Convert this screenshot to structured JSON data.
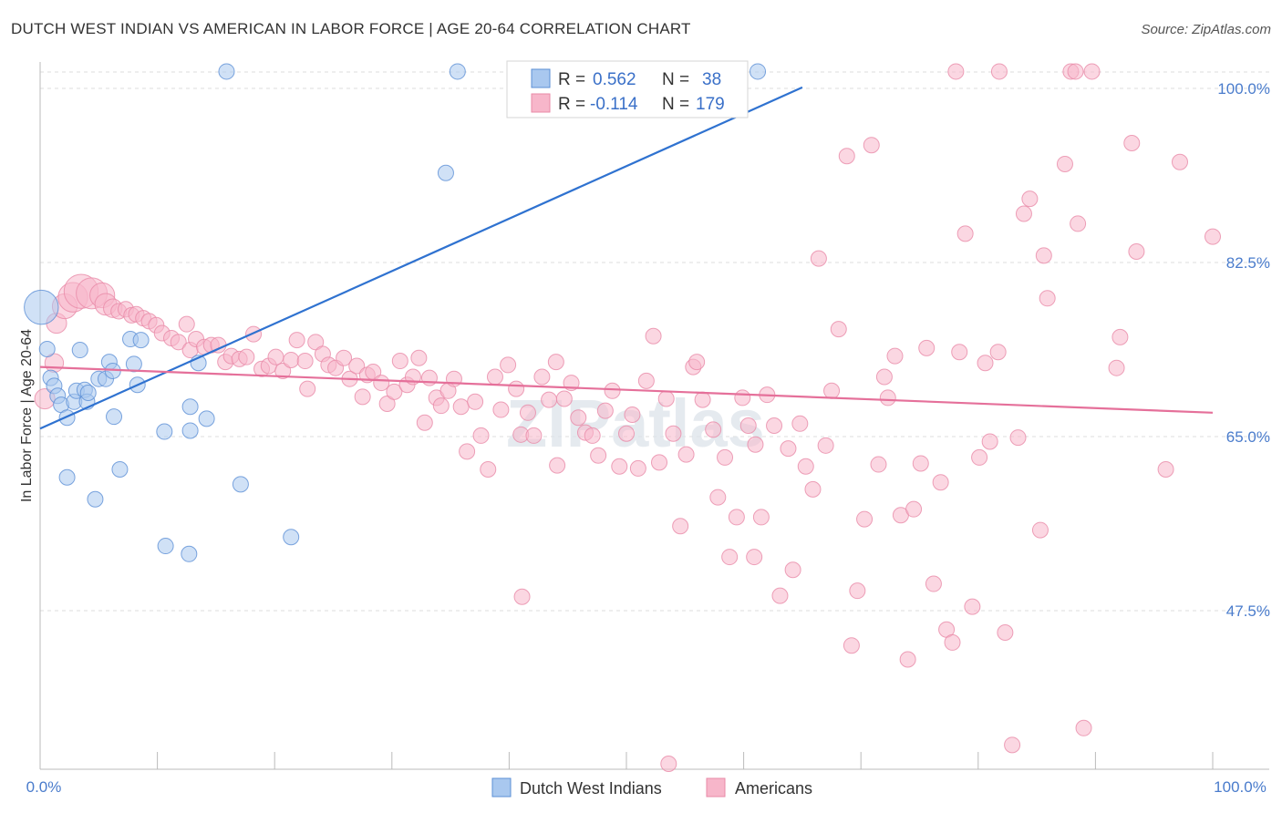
{
  "title": "DUTCH WEST INDIAN VS AMERICAN IN LABOR FORCE | AGE 20-64 CORRELATION CHART",
  "source": "Source: ZipAtlas.com",
  "watermark": "ZIPatlas",
  "chart_data": {
    "type": "scatter",
    "title": "DUTCH WEST INDIAN VS AMERICAN IN LABOR FORCE | AGE 20-64 CORRELATION CHART",
    "xlabel": "",
    "ylabel": "In Labor Force | Age 20-64",
    "xlim": [
      0,
      100
    ],
    "ylim": [
      32,
      102
    ],
    "x_tick_labels": [
      "0.0%",
      "100.0%"
    ],
    "y_ticks": [
      47.5,
      65.0,
      82.5,
      100.0
    ],
    "y_tick_labels": [
      "47.5%",
      "65.0%",
      "82.5%",
      "100.0%"
    ],
    "grid": true,
    "legend": [
      {
        "name": "Dutch West Indians",
        "r_label": "R =",
        "r": "0.562",
        "n_label": "N =",
        "n": "38",
        "color": "#a9c8ef",
        "stroke": "#5b8fd6"
      },
      {
        "name": "Americans",
        "r_label": "R =",
        "r": "-0.114",
        "n_label": "N =",
        "n": "179",
        "color": "#f7b6ca",
        "stroke": "#e889a7"
      }
    ],
    "series": [
      {
        "name": "Dutch West Indians",
        "color": "#a9c8ef",
        "stroke": "#5b8fd6",
        "trend": {
          "x": [
            0,
            65
          ],
          "y": [
            65.8,
            100.1
          ],
          "color": "#2f72d0"
        },
        "points": [
          {
            "x": 0.1,
            "y": 78.0,
            "s": 2.2
          },
          {
            "x": 0.6,
            "y": 73.8
          },
          {
            "x": 0.9,
            "y": 70.9
          },
          {
            "x": 1.2,
            "y": 70.1
          },
          {
            "x": 1.5,
            "y": 69.1
          },
          {
            "x": 1.8,
            "y": 68.2
          },
          {
            "x": 2.3,
            "y": 66.9
          },
          {
            "x": 2.9,
            "y": 68.5
          },
          {
            "x": 3.1,
            "y": 69.6
          },
          {
            "x": 3.4,
            "y": 73.7
          },
          {
            "x": 3.8,
            "y": 69.7
          },
          {
            "x": 4.0,
            "y": 68.5
          },
          {
            "x": 4.1,
            "y": 69.4
          },
          {
            "x": 5.0,
            "y": 70.8
          },
          {
            "x": 5.6,
            "y": 70.8
          },
          {
            "x": 5.9,
            "y": 72.5
          },
          {
            "x": 6.2,
            "y": 71.6
          },
          {
            "x": 6.3,
            "y": 67.0
          },
          {
            "x": 6.8,
            "y": 61.7
          },
          {
            "x": 7.7,
            "y": 74.8
          },
          {
            "x": 8.0,
            "y": 72.3
          },
          {
            "x": 8.3,
            "y": 70.2
          },
          {
            "x": 8.6,
            "y": 74.7
          },
          {
            "x": 2.3,
            "y": 60.9
          },
          {
            "x": 4.7,
            "y": 58.7
          },
          {
            "x": 10.6,
            "y": 65.5
          },
          {
            "x": 10.7,
            "y": 54.0
          },
          {
            "x": 12.7,
            "y": 53.2
          },
          {
            "x": 12.8,
            "y": 68.0
          },
          {
            "x": 12.8,
            "y": 65.6
          },
          {
            "x": 13.5,
            "y": 72.4
          },
          {
            "x": 14.2,
            "y": 66.8
          },
          {
            "x": 17.1,
            "y": 60.2
          },
          {
            "x": 21.4,
            "y": 54.9
          },
          {
            "x": 15.9,
            "y": 101.7
          },
          {
            "x": 35.6,
            "y": 101.7
          },
          {
            "x": 34.6,
            "y": 91.5
          },
          {
            "x": 61.2,
            "y": 101.7
          }
        ]
      },
      {
        "name": "Americans",
        "color": "#f7b6ca",
        "stroke": "#e889a7",
        "trend": {
          "x": [
            0,
            100
          ],
          "y": [
            72.0,
            67.4
          ],
          "color": "#e5709a"
        },
        "points": [
          {
            "x": 0.4,
            "y": 68.8,
            "s": 1.3
          },
          {
            "x": 1.2,
            "y": 72.4,
            "s": 1.2
          },
          {
            "x": 1.4,
            "y": 76.4,
            "s": 1.3
          },
          {
            "x": 2.1,
            "y": 78.1,
            "s": 1.6
          },
          {
            "x": 2.8,
            "y": 79.0,
            "s": 1.9
          },
          {
            "x": 3.5,
            "y": 79.6,
            "s": 2.2
          },
          {
            "x": 4.4,
            "y": 79.4,
            "s": 2.0
          },
          {
            "x": 5.3,
            "y": 79.2,
            "s": 1.6
          },
          {
            "x": 5.6,
            "y": 78.3,
            "s": 1.4
          },
          {
            "x": 6.2,
            "y": 77.9,
            "s": 1.2
          },
          {
            "x": 6.7,
            "y": 77.6
          },
          {
            "x": 7.3,
            "y": 77.8
          },
          {
            "x": 7.8,
            "y": 77.2
          },
          {
            "x": 8.2,
            "y": 77.3
          },
          {
            "x": 8.8,
            "y": 76.9
          },
          {
            "x": 9.3,
            "y": 76.6
          },
          {
            "x": 9.9,
            "y": 76.2
          },
          {
            "x": 10.4,
            "y": 75.4
          },
          {
            "x": 11.2,
            "y": 74.9
          },
          {
            "x": 11.8,
            "y": 74.5
          },
          {
            "x": 12.5,
            "y": 76.3
          },
          {
            "x": 12.8,
            "y": 73.7
          },
          {
            "x": 13.3,
            "y": 74.8
          },
          {
            "x": 14.0,
            "y": 74.0
          },
          {
            "x": 14.6,
            "y": 74.2
          },
          {
            "x": 15.2,
            "y": 74.2
          },
          {
            "x": 15.8,
            "y": 72.5
          },
          {
            "x": 16.3,
            "y": 73.1
          },
          {
            "x": 17.0,
            "y": 72.8
          },
          {
            "x": 17.6,
            "y": 73.0
          },
          {
            "x": 18.2,
            "y": 75.3
          },
          {
            "x": 18.9,
            "y": 71.8
          },
          {
            "x": 19.5,
            "y": 72.1
          },
          {
            "x": 20.1,
            "y": 73.0
          },
          {
            "x": 20.7,
            "y": 71.6
          },
          {
            "x": 21.4,
            "y": 72.7
          },
          {
            "x": 21.9,
            "y": 74.7
          },
          {
            "x": 22.6,
            "y": 72.6
          },
          {
            "x": 22.8,
            "y": 69.8
          },
          {
            "x": 23.5,
            "y": 74.5
          },
          {
            "x": 24.1,
            "y": 73.3
          },
          {
            "x": 24.6,
            "y": 72.2
          },
          {
            "x": 25.2,
            "y": 71.9
          },
          {
            "x": 25.9,
            "y": 72.9
          },
          {
            "x": 26.4,
            "y": 70.8
          },
          {
            "x": 27.0,
            "y": 72.1
          },
          {
            "x": 27.5,
            "y": 69.0
          },
          {
            "x": 27.9,
            "y": 71.2
          },
          {
            "x": 28.4,
            "y": 71.5
          },
          {
            "x": 29.1,
            "y": 70.4
          },
          {
            "x": 29.6,
            "y": 68.3
          },
          {
            "x": 30.2,
            "y": 69.5
          },
          {
            "x": 30.7,
            "y": 72.6
          },
          {
            "x": 31.3,
            "y": 70.2
          },
          {
            "x": 31.8,
            "y": 71.0
          },
          {
            "x": 32.3,
            "y": 72.9
          },
          {
            "x": 32.8,
            "y": 66.4
          },
          {
            "x": 33.2,
            "y": 70.9
          },
          {
            "x": 33.8,
            "y": 68.9
          },
          {
            "x": 34.2,
            "y": 68.1
          },
          {
            "x": 34.8,
            "y": 69.6
          },
          {
            "x": 35.3,
            "y": 70.8
          },
          {
            "x": 35.9,
            "y": 68.0
          },
          {
            "x": 36.4,
            "y": 63.5
          },
          {
            "x": 37.1,
            "y": 68.5
          },
          {
            "x": 37.6,
            "y": 65.1
          },
          {
            "x": 38.2,
            "y": 61.7
          },
          {
            "x": 38.8,
            "y": 71.0
          },
          {
            "x": 39.3,
            "y": 67.7
          },
          {
            "x": 39.9,
            "y": 72.2
          },
          {
            "x": 40.6,
            "y": 69.8
          },
          {
            "x": 41.0,
            "y": 65.2
          },
          {
            "x": 41.6,
            "y": 67.4
          },
          {
            "x": 42.1,
            "y": 65.1
          },
          {
            "x": 42.8,
            "y": 71.0
          },
          {
            "x": 43.4,
            "y": 68.7
          },
          {
            "x": 44.1,
            "y": 62.1
          },
          {
            "x": 44.0,
            "y": 72.5
          },
          {
            "x": 44.7,
            "y": 68.8
          },
          {
            "x": 45.3,
            "y": 70.4
          },
          {
            "x": 45.9,
            "y": 66.9
          },
          {
            "x": 46.5,
            "y": 65.4
          },
          {
            "x": 47.1,
            "y": 65.1
          },
          {
            "x": 47.6,
            "y": 63.1
          },
          {
            "x": 48.2,
            "y": 67.6
          },
          {
            "x": 48.8,
            "y": 69.6
          },
          {
            "x": 49.4,
            "y": 62.0
          },
          {
            "x": 50.0,
            "y": 65.3
          },
          {
            "x": 50.5,
            "y": 67.2
          },
          {
            "x": 51.0,
            "y": 61.8
          },
          {
            "x": 51.7,
            "y": 70.6
          },
          {
            "x": 52.3,
            "y": 75.1
          },
          {
            "x": 52.8,
            "y": 62.4
          },
          {
            "x": 53.4,
            "y": 68.8
          },
          {
            "x": 54.0,
            "y": 65.3
          },
          {
            "x": 54.6,
            "y": 56.0
          },
          {
            "x": 55.1,
            "y": 63.2
          },
          {
            "x": 55.7,
            "y": 72.0
          },
          {
            "x": 56.0,
            "y": 72.5
          },
          {
            "x": 56.5,
            "y": 68.7
          },
          {
            "x": 57.4,
            "y": 65.7
          },
          {
            "x": 57.8,
            "y": 58.9
          },
          {
            "x": 58.4,
            "y": 62.9
          },
          {
            "x": 58.8,
            "y": 52.9
          },
          {
            "x": 59.4,
            "y": 56.9
          },
          {
            "x": 59.9,
            "y": 68.9
          },
          {
            "x": 60.4,
            "y": 66.1
          },
          {
            "x": 61.0,
            "y": 64.2
          },
          {
            "x": 61.5,
            "y": 56.9
          },
          {
            "x": 62.0,
            "y": 69.2
          },
          {
            "x": 62.6,
            "y": 66.1
          },
          {
            "x": 63.1,
            "y": 49.0
          },
          {
            "x": 63.8,
            "y": 63.8
          },
          {
            "x": 64.2,
            "y": 51.6
          },
          {
            "x": 64.8,
            "y": 66.3
          },
          {
            "x": 65.3,
            "y": 62.0
          },
          {
            "x": 65.9,
            "y": 59.7
          },
          {
            "x": 66.4,
            "y": 82.9
          },
          {
            "x": 67.0,
            "y": 64.1
          },
          {
            "x": 67.5,
            "y": 69.6
          },
          {
            "x": 68.1,
            "y": 75.8
          },
          {
            "x": 68.8,
            "y": 93.2
          },
          {
            "x": 69.2,
            "y": 44.0
          },
          {
            "x": 69.7,
            "y": 49.5
          },
          {
            "x": 70.3,
            "y": 56.7
          },
          {
            "x": 70.9,
            "y": 94.3
          },
          {
            "x": 71.5,
            "y": 62.2
          },
          {
            "x": 72.0,
            "y": 71.0
          },
          {
            "x": 72.3,
            "y": 68.9
          },
          {
            "x": 72.9,
            "y": 73.1
          },
          {
            "x": 73.4,
            "y": 57.1
          },
          {
            "x": 74.0,
            "y": 42.6
          },
          {
            "x": 74.5,
            "y": 57.7
          },
          {
            "x": 75.1,
            "y": 62.3
          },
          {
            "x": 75.6,
            "y": 73.9
          },
          {
            "x": 76.2,
            "y": 50.2
          },
          {
            "x": 76.8,
            "y": 60.4
          },
          {
            "x": 77.3,
            "y": 45.6
          },
          {
            "x": 77.8,
            "y": 44.3
          },
          {
            "x": 78.4,
            "y": 73.5
          },
          {
            "x": 78.9,
            "y": 85.4
          },
          {
            "x": 79.5,
            "y": 47.9
          },
          {
            "x": 80.1,
            "y": 62.9
          },
          {
            "x": 80.6,
            "y": 72.4
          },
          {
            "x": 81.0,
            "y": 64.5
          },
          {
            "x": 81.7,
            "y": 73.5
          },
          {
            "x": 82.3,
            "y": 45.3
          },
          {
            "x": 82.9,
            "y": 34.0
          },
          {
            "x": 83.4,
            "y": 64.9
          },
          {
            "x": 83.9,
            "y": 87.4
          },
          {
            "x": 84.4,
            "y": 88.9
          },
          {
            "x": 85.3,
            "y": 55.6
          },
          {
            "x": 85.6,
            "y": 83.2
          },
          {
            "x": 85.9,
            "y": 78.9
          },
          {
            "x": 87.4,
            "y": 92.4
          },
          {
            "x": 88.5,
            "y": 86.4
          },
          {
            "x": 89.0,
            "y": 35.7
          },
          {
            "x": 91.8,
            "y": 71.9
          },
          {
            "x": 92.1,
            "y": 75.0
          },
          {
            "x": 93.1,
            "y": 94.5
          },
          {
            "x": 93.5,
            "y": 83.6
          },
          {
            "x": 96.0,
            "y": 61.7
          },
          {
            "x": 97.2,
            "y": 92.6
          },
          {
            "x": 100.0,
            "y": 85.1
          },
          {
            "x": 78.1,
            "y": 101.7
          },
          {
            "x": 81.8,
            "y": 101.7
          },
          {
            "x": 87.9,
            "y": 101.7
          },
          {
            "x": 88.3,
            "y": 101.7
          },
          {
            "x": 89.7,
            "y": 101.7
          },
          {
            "x": 53.6,
            "y": 32.0
          },
          {
            "x": 41.1,
            "y": 48.9
          },
          {
            "x": 60.9,
            "y": 52.9
          }
        ]
      }
    ]
  }
}
